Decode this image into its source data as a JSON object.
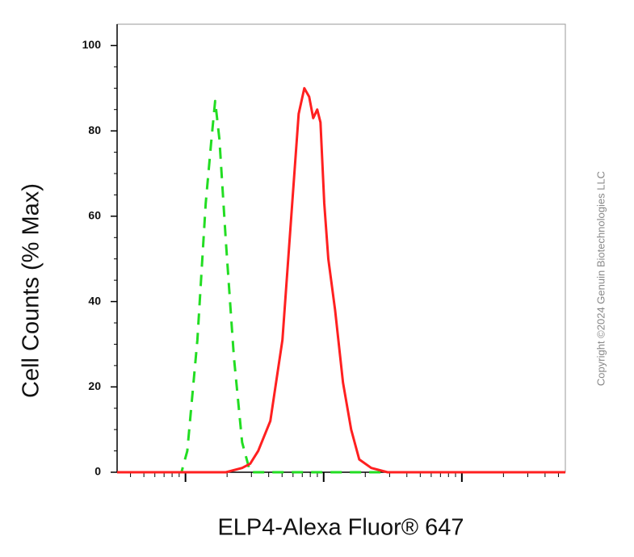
{
  "chart_data": {
    "type": "line",
    "ylabel": "Cell Counts (% Max)",
    "xlabel": "ELP4-Alexa Fluor® 647",
    "watermark": "Copyright ©2024 Genuin Biotechnologies LLC",
    "xscale": "log",
    "xlim": [
      3.2,
      5610
    ],
    "xticks": [
      10,
      100,
      1000
    ],
    "ylim": [
      0,
      105
    ],
    "yticks": [
      0,
      20,
      40,
      60,
      80,
      100
    ],
    "series": [
      {
        "color": "#22dd22",
        "dash": true,
        "x": [
          3.2,
          9.35,
          10.3,
          12.2,
          14.0,
          15.4,
          16.4,
          17.6,
          19.6,
          22.4,
          25.7,
          29.4,
          5610
        ],
        "values": [
          0,
          0,
          5,
          31,
          63,
          78,
          87,
          78,
          54,
          27,
          7,
          0,
          0
        ]
      },
      {
        "color": "#ff2020",
        "dash": false,
        "x": [
          3.2,
          19.6,
          25.7,
          29.4,
          33.6,
          41.1,
          50.3,
          59.2,
          65.9,
          72.4,
          78.5,
          84.0,
          89.8,
          94.8,
          101,
          108,
          121,
          138,
          158,
          181,
          221,
          290,
          5610
        ],
        "values": [
          0,
          0,
          1,
          2,
          5,
          12,
          31,
          63,
          84,
          90,
          88,
          83,
          85,
          82,
          63,
          50,
          38,
          21,
          10,
          3,
          1,
          0,
          0
        ]
      }
    ]
  }
}
